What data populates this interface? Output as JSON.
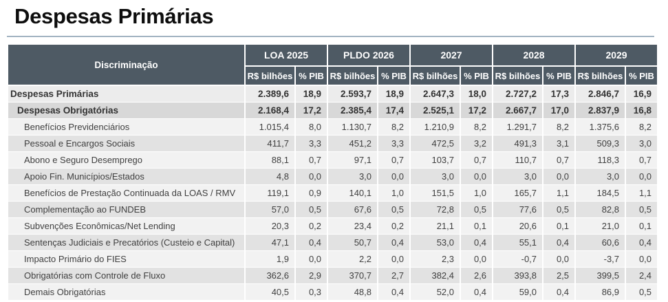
{
  "title": "Despesas Primárias",
  "table": {
    "discrimination_header": "Discriminação",
    "col_groups": [
      {
        "label": "LOA 2025"
      },
      {
        "label": "PLDO 2026"
      },
      {
        "label": "2027"
      },
      {
        "label": "2028"
      },
      {
        "label": "2029"
      }
    ],
    "sub_headers": [
      "R$ bilhões",
      "% PIB"
    ],
    "rows": [
      {
        "label": "Despesas Primárias",
        "level": 0,
        "bold": true,
        "values": [
          "2.389,6",
          "18,9",
          "2.593,7",
          "18,9",
          "2.647,3",
          "18,0",
          "2.727,2",
          "17,3",
          "2.846,7",
          "16,9"
        ]
      },
      {
        "label": "Despesas Obrigatórias",
        "level": 1,
        "bold": true,
        "values": [
          "2.168,4",
          "17,2",
          "2.385,4",
          "17,4",
          "2.525,1",
          "17,2",
          "2.667,7",
          "17,0",
          "2.837,9",
          "16,8"
        ]
      },
      {
        "label": "Benefícios Previdenciários",
        "level": 2,
        "bold": false,
        "values": [
          "1.015,4",
          "8,0",
          "1.130,7",
          "8,2",
          "1.210,9",
          "8,2",
          "1.291,7",
          "8,2",
          "1.375,6",
          "8,2"
        ]
      },
      {
        "label": "Pessoal e Encargos Sociais",
        "level": 2,
        "bold": false,
        "values": [
          "411,7",
          "3,3",
          "451,2",
          "3,3",
          "472,5",
          "3,2",
          "491,3",
          "3,1",
          "509,3",
          "3,0"
        ]
      },
      {
        "label": "Abono e Seguro Desemprego",
        "level": 2,
        "bold": false,
        "values": [
          "88,1",
          "0,7",
          "97,1",
          "0,7",
          "103,7",
          "0,7",
          "110,7",
          "0,7",
          "118,3",
          "0,7"
        ]
      },
      {
        "label": "Apoio Fin. Municípios/Estados",
        "level": 2,
        "bold": false,
        "values": [
          "4,8",
          "0,0",
          "3,0",
          "0,0",
          "3,0",
          "0,0",
          "3,0",
          "0,0",
          "3,0",
          "0,0"
        ]
      },
      {
        "label": "Benefícios de Prestação Continuada da LOAS / RMV",
        "level": 2,
        "bold": false,
        "values": [
          "119,1",
          "0,9",
          "140,1",
          "1,0",
          "151,5",
          "1,0",
          "165,7",
          "1,1",
          "184,5",
          "1,1"
        ]
      },
      {
        "label": "Complementação ao FUNDEB",
        "level": 2,
        "bold": false,
        "values": [
          "57,0",
          "0,5",
          "67,6",
          "0,5",
          "72,8",
          "0,5",
          "77,6",
          "0,5",
          "82,8",
          "0,5"
        ]
      },
      {
        "label": "Subvenções Econômicas/Net Lending",
        "level": 2,
        "bold": false,
        "values": [
          "20,3",
          "0,2",
          "23,4",
          "0,2",
          "21,1",
          "0,1",
          "20,6",
          "0,1",
          "21,0",
          "0,1"
        ]
      },
      {
        "label": "Sentenças Judiciais e Precatórios (Custeio e Capital)",
        "level": 2,
        "bold": false,
        "values": [
          "47,1",
          "0,4",
          "50,7",
          "0,4",
          "53,0",
          "0,4",
          "55,1",
          "0,4",
          "60,6",
          "0,4"
        ]
      },
      {
        "label": "Impacto Primário do FIES",
        "level": 2,
        "bold": false,
        "values": [
          "1,9",
          "0,0",
          "2,2",
          "0,0",
          "2,3",
          "0,0",
          "-0,7",
          "0,0",
          "-3,7",
          "0,0"
        ]
      },
      {
        "label": "Obrigatórias com Controle de Fluxo",
        "level": 2,
        "bold": false,
        "values": [
          "362,6",
          "2,9",
          "370,7",
          "2,7",
          "382,4",
          "2,6",
          "393,8",
          "2,5",
          "399,5",
          "2,4"
        ]
      },
      {
        "label": "Demais Obrigatórias",
        "level": 2,
        "bold": false,
        "values": [
          "40,5",
          "0,3",
          "48,8",
          "0,4",
          "52,0",
          "0,4",
          "59,0",
          "0,4",
          "86,9",
          "0,5"
        ]
      }
    ]
  },
  "colors": {
    "header_bg": "#4E5A64",
    "row_light": "#F2F2F2",
    "row_dark": "#E2E2E2",
    "row_total1": "#ECECEC",
    "row_total2": "#D8D8D8",
    "underline": "#A2B4C2",
    "text": "#3F3F3F"
  }
}
